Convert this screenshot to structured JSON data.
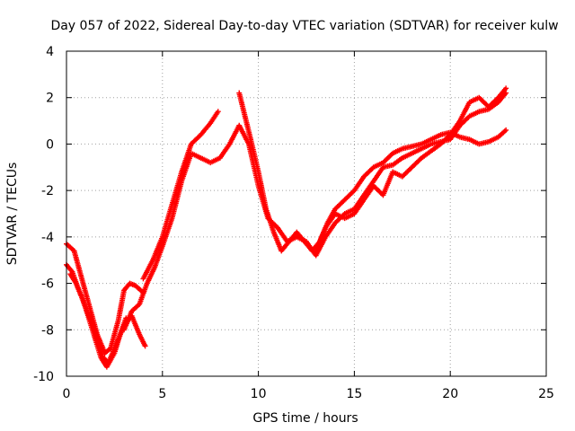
{
  "chart_data": {
    "type": "scatter",
    "title": "Day 057 of 2022, Sidereal Day-to-day VTEC variation (SDTVAR) for receiver kulw",
    "xlabel": "GPS time / hours",
    "ylabel": "SDTVAR / TECUs",
    "xlim": [
      0,
      25
    ],
    "ylim": [
      -10,
      4
    ],
    "x_ticks": [
      "0",
      "5",
      "10",
      "15",
      "20",
      "25"
    ],
    "y_ticks": [
      "-10",
      "-8",
      "-6",
      "-4",
      "-2",
      "0",
      "2",
      "4"
    ],
    "grid": true,
    "marker": "+",
    "color": "#ff0000",
    "series": [
      {
        "points": [
          [
            0.0,
            -4.3
          ],
          [
            0.4,
            -4.6
          ],
          [
            0.8,
            -5.8
          ],
          [
            1.2,
            -7.0
          ],
          [
            1.6,
            -8.2
          ],
          [
            2.0,
            -9.0
          ],
          [
            2.3,
            -8.8
          ],
          [
            2.7,
            -7.6
          ],
          [
            3.0,
            -6.3
          ],
          [
            3.3,
            -6.0
          ],
          [
            3.6,
            -6.1
          ],
          [
            4.0,
            -6.4
          ]
        ]
      },
      {
        "points": [
          [
            0.0,
            -5.2
          ],
          [
            0.3,
            -5.5
          ],
          [
            0.6,
            -6.2
          ],
          [
            0.9,
            -6.8
          ],
          [
            1.2,
            -7.6
          ],
          [
            1.5,
            -8.4
          ],
          [
            1.8,
            -9.2
          ],
          [
            2.1,
            -9.6
          ],
          [
            2.5,
            -9.0
          ],
          [
            2.8,
            -8.2
          ],
          [
            3.1,
            -7.5
          ]
        ]
      },
      {
        "points": [
          [
            0.2,
            -5.6
          ],
          [
            0.5,
            -6.0
          ],
          [
            0.8,
            -6.6
          ],
          [
            1.1,
            -7.3
          ],
          [
            1.5,
            -8.0
          ],
          [
            1.9,
            -9.2
          ],
          [
            2.2,
            -9.4
          ],
          [
            2.6,
            -8.6
          ],
          [
            3.0,
            -7.8
          ],
          [
            3.4,
            -7.4
          ],
          [
            3.8,
            -8.2
          ],
          [
            4.1,
            -8.7
          ]
        ]
      },
      {
        "points": [
          [
            3.0,
            -8.0
          ],
          [
            3.4,
            -7.2
          ],
          [
            3.8,
            -6.9
          ],
          [
            4.2,
            -6.0
          ],
          [
            4.6,
            -5.3
          ],
          [
            5.0,
            -4.4
          ],
          [
            5.5,
            -3.2
          ],
          [
            6.0,
            -1.6
          ],
          [
            6.5,
            -0.4
          ],
          [
            7.0,
            -0.6
          ],
          [
            7.5,
            -0.8
          ],
          [
            8.0,
            -0.6
          ],
          [
            8.5,
            0.0
          ],
          [
            9.0,
            0.8
          ],
          [
            9.5,
            0.0
          ],
          [
            10.0,
            -1.8
          ],
          [
            10.5,
            -3.2
          ],
          [
            11.0,
            -3.6
          ],
          [
            11.5,
            -4.2
          ],
          [
            12.0,
            -4.0
          ],
          [
            12.5,
            -4.2
          ],
          [
            13.0,
            -4.8
          ],
          [
            13.5,
            -4.0
          ],
          [
            14.0,
            -3.4
          ],
          [
            14.5,
            -3.0
          ],
          [
            15.0,
            -2.8
          ],
          [
            15.5,
            -2.2
          ],
          [
            16.0,
            -1.6
          ],
          [
            16.5,
            -1.0
          ],
          [
            17.0,
            -0.9
          ],
          [
            17.5,
            -0.6
          ],
          [
            18.0,
            -0.4
          ],
          [
            18.5,
            -0.2
          ],
          [
            19.0,
            0.0
          ],
          [
            19.5,
            0.1
          ],
          [
            20.0,
            0.2
          ],
          [
            20.5,
            0.8
          ],
          [
            21.0,
            1.2
          ],
          [
            21.5,
            1.4
          ],
          [
            22.0,
            1.5
          ],
          [
            22.5,
            1.8
          ],
          [
            22.9,
            2.2
          ]
        ]
      },
      {
        "points": [
          [
            4.0,
            -5.8
          ],
          [
            4.5,
            -5.0
          ],
          [
            5.0,
            -4.0
          ],
          [
            5.5,
            -2.6
          ],
          [
            6.0,
            -1.2
          ],
          [
            6.5,
            0.0
          ],
          [
            7.0,
            0.4
          ],
          [
            7.5,
            0.9
          ],
          [
            7.9,
            1.4
          ]
        ]
      },
      {
        "points": [
          [
            9.0,
            2.2
          ],
          [
            9.3,
            1.2
          ],
          [
            9.6,
            0.2
          ],
          [
            10.0,
            -1.2
          ],
          [
            10.4,
            -2.8
          ],
          [
            10.8,
            -3.8
          ],
          [
            11.2,
            -4.6
          ],
          [
            11.6,
            -4.2
          ],
          [
            12.0,
            -3.8
          ],
          [
            12.4,
            -4.2
          ],
          [
            12.8,
            -4.6
          ],
          [
            13.2,
            -4.2
          ],
          [
            13.6,
            -3.4
          ],
          [
            14.0,
            -2.8
          ],
          [
            14.5,
            -2.4
          ],
          [
            15.0,
            -2.0
          ],
          [
            15.5,
            -1.4
          ],
          [
            16.0,
            -1.0
          ],
          [
            16.5,
            -0.8
          ],
          [
            17.0,
            -0.4
          ],
          [
            17.5,
            -0.2
          ],
          [
            18.0,
            -0.1
          ],
          [
            18.5,
            0.0
          ],
          [
            19.0,
            0.2
          ],
          [
            19.5,
            0.4
          ],
          [
            20.0,
            0.5
          ],
          [
            20.5,
            0.3
          ],
          [
            21.0,
            0.2
          ],
          [
            21.5,
            0.0
          ],
          [
            22.0,
            0.1
          ],
          [
            22.5,
            0.3
          ],
          [
            22.9,
            0.6
          ]
        ]
      },
      {
        "points": [
          [
            13.0,
            -4.6
          ],
          [
            13.5,
            -3.6
          ],
          [
            14.0,
            -3.0
          ],
          [
            14.5,
            -3.2
          ],
          [
            15.0,
            -3.0
          ],
          [
            15.5,
            -2.4
          ],
          [
            16.0,
            -1.8
          ],
          [
            16.5,
            -2.2
          ],
          [
            17.0,
            -1.2
          ],
          [
            17.5,
            -1.4
          ],
          [
            18.0,
            -1.0
          ],
          [
            18.5,
            -0.6
          ],
          [
            19.0,
            -0.3
          ],
          [
            19.5,
            0.0
          ],
          [
            20.0,
            0.4
          ],
          [
            20.5,
            1.0
          ],
          [
            21.0,
            1.8
          ],
          [
            21.5,
            2.0
          ],
          [
            22.0,
            1.6
          ],
          [
            22.5,
            2.0
          ],
          [
            22.9,
            2.4
          ]
        ]
      }
    ]
  }
}
